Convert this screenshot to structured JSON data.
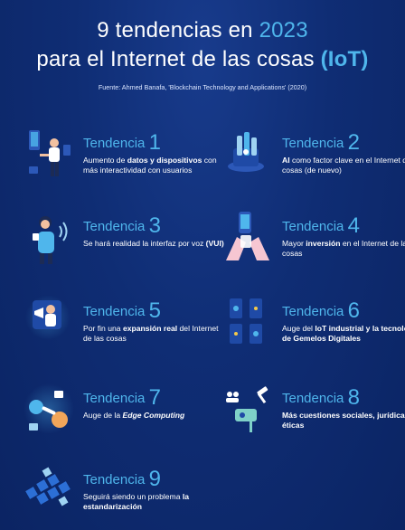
{
  "title": {
    "line1_a": "9 tendencias en ",
    "line1_year": "2023",
    "line2_a": "para el Internet de las cosas ",
    "line2_b": "(IoT)"
  },
  "source": "Fuente: Ahmed Banafa, 'Blockchain Technology and Applications' (2020)",
  "trend_label": "Tendencia",
  "trends": [
    {
      "num": "1",
      "icon": "person-and-devices-icon",
      "desc": [
        {
          "t": "Aumento de ",
          "b": false
        },
        {
          "t": "datos y dispositivos",
          "b": true
        },
        {
          "t": " con más interactividad con usuarios",
          "b": false
        }
      ]
    },
    {
      "num": "2",
      "icon": "ai-brain-cube-icon",
      "desc": [
        {
          "t": "AI",
          "b": true
        },
        {
          "t": " como factor clave en el Internet de las cosas (de nuevo)",
          "b": false
        }
      ]
    },
    {
      "num": "3",
      "icon": "voice-user-interface-icon",
      "desc": [
        {
          "t": "Se hará realidad la interfaz por voz ",
          "b": false
        },
        {
          "t": "(VUI)",
          "b": true
        }
      ]
    },
    {
      "num": "4",
      "icon": "hands-holding-phone-icon",
      "desc": [
        {
          "t": "Mayor ",
          "b": false
        },
        {
          "t": "inversión",
          "b": true
        },
        {
          "t": " en el Internet de las cosas",
          "b": false
        }
      ]
    },
    {
      "num": "5",
      "icon": "person-megaphone-icon",
      "desc": [
        {
          "t": "Por fin una ",
          "b": false
        },
        {
          "t": "expansión real",
          "b": true
        },
        {
          "t": " del Internet de las cosas",
          "b": false
        }
      ]
    },
    {
      "num": "6",
      "icon": "industrial-digital-twin-icon",
      "desc": [
        {
          "t": "Auge del ",
          "b": false
        },
        {
          "t": "IoT industrial y la tecnología de Gemelos Digitales",
          "b": true
        }
      ]
    },
    {
      "num": "7",
      "icon": "edge-computing-icon",
      "desc": [
        {
          "t": "Auge de la ",
          "b": false
        },
        {
          "t": "Edge Computing",
          "b": true,
          "i": true
        }
      ]
    },
    {
      "num": "8",
      "icon": "social-legal-ethics-icon",
      "desc": [
        {
          "t": "Más cuestiones sociales, jurídicas y éticas",
          "b": true
        }
      ]
    },
    {
      "num": "9",
      "icon": "standardization-blocks-icon",
      "desc": [
        {
          "t": "Seguirá siendo un problema ",
          "b": false
        },
        {
          "t": "la estandarización",
          "b": true
        }
      ]
    }
  ],
  "colors": {
    "background": "#0f2d74",
    "accent": "#4fb6ec",
    "text": "#ffffff"
  }
}
